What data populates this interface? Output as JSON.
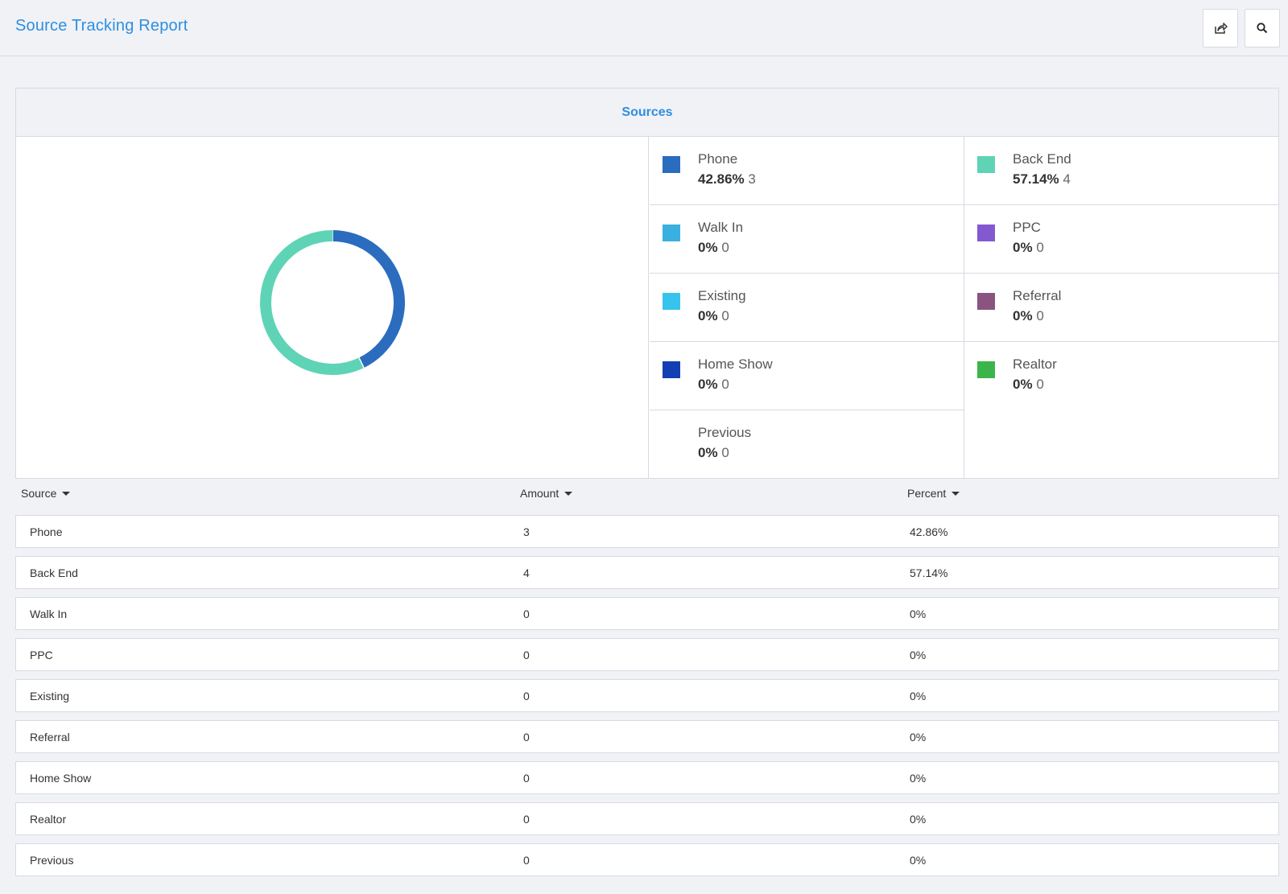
{
  "header": {
    "title": "Source Tracking Report",
    "share_icon": "share-icon",
    "search_icon": "search-icon"
  },
  "panel": {
    "title": "Sources"
  },
  "legend": [
    {
      "name": "Phone",
      "percent": "42.86%",
      "count": "3",
      "color": "#2b6cbf"
    },
    {
      "name": "Back End",
      "percent": "57.14%",
      "count": "4",
      "color": "#5fd3b6"
    },
    {
      "name": "Walk In",
      "percent": "0%",
      "count": "0",
      "color": "#3ab0e0"
    },
    {
      "name": "PPC",
      "percent": "0%",
      "count": "0",
      "color": "#8458d1"
    },
    {
      "name": "Existing",
      "percent": "0%",
      "count": "0",
      "color": "#36c4ee"
    },
    {
      "name": "Referral",
      "percent": "0%",
      "count": "0",
      "color": "#8a5480"
    },
    {
      "name": "Home Show",
      "percent": "0%",
      "count": "0",
      "color": "#1240b3"
    },
    {
      "name": "Realtor",
      "percent": "0%",
      "count": "0",
      "color": "#3bb54a"
    },
    {
      "name": "Previous",
      "percent": "0%",
      "count": "0",
      "color": ""
    }
  ],
  "table": {
    "columns": [
      "Source",
      "Amount",
      "Percent"
    ],
    "rows": [
      [
        "Phone",
        "3",
        "42.86%"
      ],
      [
        "Back End",
        "4",
        "57.14%"
      ],
      [
        "Walk In",
        "0",
        "0%"
      ],
      [
        "PPC",
        "0",
        "0%"
      ],
      [
        "Existing",
        "0",
        "0%"
      ],
      [
        "Referral",
        "0",
        "0%"
      ],
      [
        "Home Show",
        "0",
        "0%"
      ],
      [
        "Realtor",
        "0",
        "0%"
      ],
      [
        "Previous",
        "0",
        "0%"
      ]
    ]
  },
  "chart_data": {
    "type": "pie",
    "categories": [
      "Phone",
      "Back End",
      "Walk In",
      "PPC",
      "Existing",
      "Referral",
      "Home Show",
      "Realtor",
      "Previous"
    ],
    "values": [
      3,
      4,
      0,
      0,
      0,
      0,
      0,
      0,
      0
    ],
    "percents": [
      42.86,
      57.14,
      0,
      0,
      0,
      0,
      0,
      0,
      0
    ],
    "colors": [
      "#2b6cbf",
      "#5fd3b6",
      "#3ab0e0",
      "#8458d1",
      "#36c4ee",
      "#8a5480",
      "#1240b3",
      "#3bb54a",
      ""
    ],
    "title": "Sources",
    "donut": true,
    "legend": "right"
  }
}
